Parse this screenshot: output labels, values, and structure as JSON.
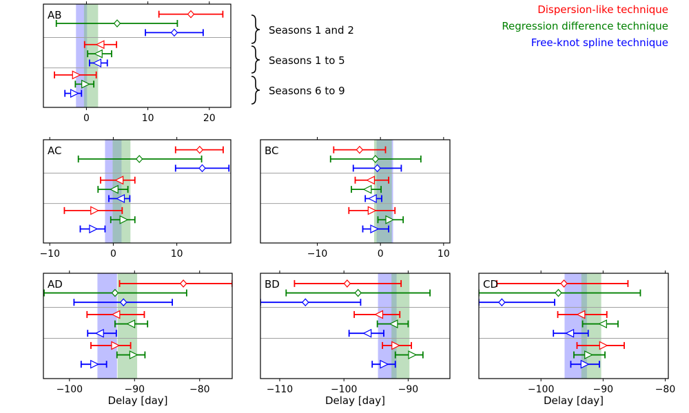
{
  "legend": [
    {
      "name": "Dispersion-like technique",
      "color": "#ff0000"
    },
    {
      "name": "Regression difference technique",
      "color": "#008000"
    },
    {
      "name": "Free-knot spline technique",
      "color": "#0000ff"
    }
  ],
  "season_groups": [
    "Seasons 1 and 2",
    "Seasons 1 to 5",
    "Seasons 6 to 9"
  ],
  "colors": {
    "blue_band": "#8080ff",
    "green_band": "#80c080",
    "grid": "#a0a0a0"
  },
  "chart_data": [
    {
      "type": "errorbar",
      "panel": "AB",
      "title": "AB",
      "xlabel": "",
      "xlim": [
        -7,
        23.5
      ],
      "xticks": [
        0,
        10,
        20
      ],
      "xtick_labels": [
        "0",
        "10",
        "20"
      ],
      "bands": [
        {
          "color": "blue",
          "range": [
            -1.7,
            0.1
          ]
        },
        {
          "color": "green",
          "range": [
            -0.4,
            1.9
          ]
        }
      ],
      "points": [
        {
          "series": "Dispersion-like technique",
          "group": "Seasons 1 and 2",
          "marker": "diamond",
          "value": 17.0,
          "low": 11.8,
          "high": 22.2
        },
        {
          "series": "Regression difference technique",
          "group": "Seasons 1 and 2",
          "marker": "diamond",
          "value": 5.0,
          "low": -4.9,
          "high": 14.8
        },
        {
          "series": "Free-knot spline technique",
          "group": "Seasons 1 and 2",
          "marker": "diamond",
          "value": 14.3,
          "low": 9.6,
          "high": 19.0
        },
        {
          "series": "Dispersion-like technique",
          "group": "Seasons 1 to 5",
          "marker": "triangle-left",
          "value": 2.3,
          "low": -0.3,
          "high": 4.9
        },
        {
          "series": "Regression difference technique",
          "group": "Seasons 1 to 5",
          "marker": "triangle-left",
          "value": 2.0,
          "low": 0.2,
          "high": 4.1
        },
        {
          "series": "Free-knot spline technique",
          "group": "Seasons 1 to 5",
          "marker": "triangle-left",
          "value": 1.8,
          "low": 0.5,
          "high": 3.4
        },
        {
          "series": "Dispersion-like technique",
          "group": "Seasons 6 to 9",
          "marker": "triangle-right",
          "value": -1.7,
          "low": -5.2,
          "high": 1.6
        },
        {
          "series": "Regression difference technique",
          "group": "Seasons 6 to 9",
          "marker": "triangle-right",
          "value": -0.2,
          "low": -1.8,
          "high": 1.2
        },
        {
          "series": "Free-knot spline technique",
          "group": "Seasons 6 to 9",
          "marker": "triangle-right",
          "value": -2.0,
          "low": -3.5,
          "high": -0.8
        }
      ]
    },
    {
      "type": "errorbar",
      "panel": "AC",
      "title": "AC",
      "xlabel": "",
      "xlim": [
        -11,
        18.5
      ],
      "xticks": [
        -10,
        0,
        10
      ],
      "xtick_labels": [
        "−10",
        "0",
        "10"
      ],
      "bands": [
        {
          "color": "blue",
          "range": [
            -1.3,
            1.3
          ]
        },
        {
          "color": "green",
          "range": [
            -0.1,
            2.7
          ]
        }
      ],
      "points": [
        {
          "series": "Dispersion-like technique",
          "group": "Seasons 1 and 2",
          "marker": "diamond",
          "value": 13.6,
          "low": 9.8,
          "high": 17.3
        },
        {
          "series": "Regression difference technique",
          "group": "Seasons 1 and 2",
          "marker": "diamond",
          "value": 4.1,
          "low": -5.5,
          "high": 13.9
        },
        {
          "series": "Free-knot spline technique",
          "group": "Seasons 1 and 2",
          "marker": "diamond",
          "value": 14.0,
          "low": 9.8,
          "high": 18.2
        },
        {
          "series": "Dispersion-like technique",
          "group": "Seasons 1 to 5",
          "marker": "triangle-left",
          "value": 1.0,
          "low": -2.0,
          "high": 3.4
        },
        {
          "series": "Regression difference technique",
          "group": "Seasons 1 to 5",
          "marker": "triangle-left",
          "value": 0.2,
          "low": -2.4,
          "high": 2.3
        },
        {
          "series": "Free-knot spline technique",
          "group": "Seasons 1 to 5",
          "marker": "triangle-left",
          "value": 1.2,
          "low": -0.7,
          "high": 2.6
        },
        {
          "series": "Dispersion-like technique",
          "group": "Seasons 6 to 9",
          "marker": "triangle-right",
          "value": -3.0,
          "low": -7.7,
          "high": 1.4
        },
        {
          "series": "Regression difference technique",
          "group": "Seasons 6 to 9",
          "marker": "triangle-right",
          "value": 1.6,
          "low": -0.4,
          "high": 3.4
        },
        {
          "series": "Free-knot spline technique",
          "group": "Seasons 6 to 9",
          "marker": "triangle-right",
          "value": -3.2,
          "low": -5.2,
          "high": -1.3
        }
      ]
    },
    {
      "type": "errorbar",
      "panel": "BC",
      "title": "BC",
      "xlabel": "",
      "xlim": [
        -19,
        11
      ],
      "xticks": [
        -10,
        0,
        10
      ],
      "xtick_labels": [
        "−10",
        "0",
        "10"
      ],
      "bands": [
        {
          "color": "blue",
          "range": [
            -0.6,
            2.0
          ]
        },
        {
          "color": "green",
          "range": [
            -1.0,
            1.8
          ]
        }
      ],
      "points": [
        {
          "series": "Dispersion-like technique",
          "group": "Seasons 1 and 2",
          "marker": "diamond",
          "value": -3.3,
          "low": -7.4,
          "high": 0.8
        },
        {
          "series": "Regression difference technique",
          "group": "Seasons 1 and 2",
          "marker": "diamond",
          "value": -0.8,
          "low": -7.9,
          "high": 6.4
        },
        {
          "series": "Free-knot spline technique",
          "group": "Seasons 1 and 2",
          "marker": "diamond",
          "value": -0.5,
          "low": -4.3,
          "high": 3.3
        },
        {
          "series": "Dispersion-like technique",
          "group": "Seasons 1 to 5",
          "marker": "triangle-left",
          "value": -1.5,
          "low": -4.0,
          "high": 1.3
        },
        {
          "series": "Regression difference technique",
          "group": "Seasons 1 to 5",
          "marker": "triangle-left",
          "value": -2.0,
          "low": -4.6,
          "high": 0.1
        },
        {
          "series": "Free-knot spline technique",
          "group": "Seasons 1 to 5",
          "marker": "triangle-left",
          "value": -1.2,
          "low": -2.4,
          "high": 0.2
        },
        {
          "series": "Dispersion-like technique",
          "group": "Seasons 6 to 9",
          "marker": "triangle-right",
          "value": -1.4,
          "low": -5.0,
          "high": 2.3
        },
        {
          "series": "Regression difference technique",
          "group": "Seasons 6 to 9",
          "marker": "triangle-right",
          "value": 1.4,
          "low": -0.4,
          "high": 3.6
        },
        {
          "series": "Free-knot spline technique",
          "group": "Seasons 6 to 9",
          "marker": "triangle-right",
          "value": -1.0,
          "low": -2.8,
          "high": 1.3
        }
      ]
    },
    {
      "type": "errorbar",
      "panel": "AD",
      "title": "AD",
      "xlabel": "Delay [day]",
      "xlim": [
        -104,
        -75
      ],
      "xticks": [
        -100,
        -90,
        -80
      ],
      "xtick_labels": [
        "−100",
        "−90",
        "−80"
      ],
      "bands": [
        {
          "color": "blue",
          "range": [
            -95.7,
            -92.7
          ]
        },
        {
          "color": "green",
          "range": [
            -92.6,
            -89.6
          ]
        }
      ],
      "points": [
        {
          "series": "Dispersion-like technique",
          "group": "Seasons 1 and 2",
          "marker": "diamond",
          "value": -82.5,
          "low": -92.3,
          "high": -75.0
        },
        {
          "series": "Regression difference technique",
          "group": "Seasons 1 and 2",
          "marker": "diamond",
          "value": -93.0,
          "low": -103.9,
          "high": -82.0
        },
        {
          "series": "Free-knot spline technique",
          "group": "Seasons 1 and 2",
          "marker": "diamond",
          "value": -91.7,
          "low": -99.3,
          "high": -84.2
        },
        {
          "series": "Dispersion-like technique",
          "group": "Seasons 1 to 5",
          "marker": "triangle-left",
          "value": -92.8,
          "low": -97.3,
          "high": -88.5
        },
        {
          "series": "Regression difference technique",
          "group": "Seasons 1 to 5",
          "marker": "triangle-left",
          "value": -90.5,
          "low": -93.0,
          "high": -88.0
        },
        {
          "series": "Free-knot spline technique",
          "group": "Seasons 1 to 5",
          "marker": "triangle-left",
          "value": -95.3,
          "low": -97.2,
          "high": -92.8
        },
        {
          "series": "Dispersion-like technique",
          "group": "Seasons 6 to 9",
          "marker": "triangle-right",
          "value": -93.0,
          "low": -96.7,
          "high": -90.6
        },
        {
          "series": "Regression difference technique",
          "group": "Seasons 6 to 9",
          "marker": "triangle-right",
          "value": -90.2,
          "low": -92.7,
          "high": -88.4
        },
        {
          "series": "Free-knot spline technique",
          "group": "Seasons 6 to 9",
          "marker": "triangle-right",
          "value": -96.2,
          "low": -98.2,
          "high": -94.3
        }
      ]
    },
    {
      "type": "errorbar",
      "panel": "BD",
      "title": "BD",
      "xlabel": "Delay [day]",
      "xlim": [
        -113,
        -83.5
      ],
      "xticks": [
        -110,
        -100,
        -90
      ],
      "xtick_labels": [
        "−110",
        "−100",
        "−90"
      ],
      "bands": [
        {
          "color": "blue",
          "range": [
            -94.7,
            -91.8
          ]
        },
        {
          "color": "green",
          "range": [
            -92.6,
            -89.8
          ]
        }
      ],
      "points": [
        {
          "series": "Dispersion-like technique",
          "group": "Seasons 1 and 2",
          "marker": "diamond",
          "value": -99.5,
          "low": -107.7,
          "high": -91.1
        },
        {
          "series": "Regression difference technique",
          "group": "Seasons 1 and 2",
          "marker": "diamond",
          "value": -97.8,
          "low": -109.0,
          "high": -86.6
        },
        {
          "series": "Free-knot spline technique",
          "group": "Seasons 1 and 2",
          "marker": "diamond",
          "value": -106.0,
          "low": -113.0,
          "high": -97.4
        },
        {
          "series": "Dispersion-like technique",
          "group": "Seasons 1 to 5",
          "marker": "triangle-left",
          "value": -94.5,
          "low": -98.4,
          "high": -91.3
        },
        {
          "series": "Regression difference technique",
          "group": "Seasons 1 to 5",
          "marker": "triangle-left",
          "value": -92.2,
          "low": -94.8,
          "high": -90.0
        },
        {
          "series": "Free-knot spline technique",
          "group": "Seasons 1 to 5",
          "marker": "triangle-left",
          "value": -96.3,
          "low": -99.2,
          "high": -93.8
        },
        {
          "series": "Dispersion-like technique",
          "group": "Seasons 6 to 9",
          "marker": "triangle-right",
          "value": -92.0,
          "low": -94.0,
          "high": -89.5
        },
        {
          "series": "Regression difference technique",
          "group": "Seasons 6 to 9",
          "marker": "triangle-right",
          "value": -89.4,
          "low": -92.0,
          "high": -87.7
        },
        {
          "series": "Free-knot spline technique",
          "group": "Seasons 6 to 9",
          "marker": "triangle-right",
          "value": -93.8,
          "low": -95.6,
          "high": -92.0
        }
      ]
    },
    {
      "type": "errorbar",
      "panel": "CD",
      "title": "CD",
      "xlabel": "Delay [day]",
      "xlim": [
        -110,
        -79.5
      ],
      "xticks": [
        -100,
        -90,
        -80
      ],
      "xtick_labels": [
        "−100",
        "−90",
        "−80"
      ],
      "bands": [
        {
          "color": "blue",
          "range": [
            -96.2,
            -92.6
          ]
        },
        {
          "color": "green",
          "range": [
            -93.5,
            -90.3
          ]
        }
      ],
      "points": [
        {
          "series": "Dispersion-like technique",
          "group": "Seasons 1 and 2",
          "marker": "diamond",
          "value": -96.3,
          "low": -107.1,
          "high": -86.0
        },
        {
          "series": "Regression difference technique",
          "group": "Seasons 1 and 2",
          "marker": "diamond",
          "value": -97.2,
          "low": -110.0,
          "high": -84.0
        },
        {
          "series": "Free-knot spline technique",
          "group": "Seasons 1 and 2",
          "marker": "diamond",
          "value": -106.3,
          "low": -110.0,
          "high": -97.8
        },
        {
          "series": "Dispersion-like technique",
          "group": "Seasons 1 to 5",
          "marker": "triangle-left",
          "value": -93.5,
          "low": -97.3,
          "high": -89.4
        },
        {
          "series": "Regression difference technique",
          "group": "Seasons 1 to 5",
          "marker": "triangle-left",
          "value": -90.0,
          "low": -93.3,
          "high": -87.6
        },
        {
          "series": "Free-knot spline technique",
          "group": "Seasons 1 to 5",
          "marker": "triangle-left",
          "value": -95.3,
          "low": -98.0,
          "high": -92.4
        },
        {
          "series": "Dispersion-like technique",
          "group": "Seasons 6 to 9",
          "marker": "triangle-right",
          "value": -90.0,
          "low": -94.2,
          "high": -86.6
        },
        {
          "series": "Regression difference technique",
          "group": "Seasons 6 to 9",
          "marker": "triangle-right",
          "value": -92.4,
          "low": -94.7,
          "high": -89.7
        },
        {
          "series": "Free-knot spline technique",
          "group": "Seasons 6 to 9",
          "marker": "triangle-right",
          "value": -93.0,
          "low": -95.2,
          "high": -90.6
        }
      ]
    }
  ]
}
